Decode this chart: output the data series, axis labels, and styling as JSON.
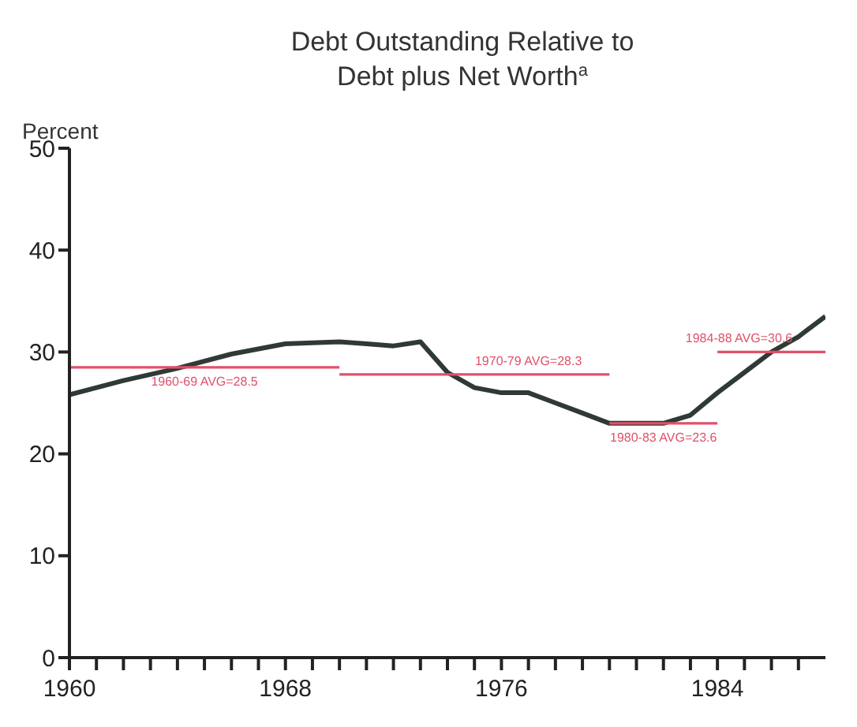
{
  "chart_data": {
    "type": "line",
    "title": "Debt Outstanding Relative to Debt plus Net Worth$^{a}$",
    "ylabel": "Percent",
    "xlim": [
      1960,
      1988
    ],
    "ylim": [
      0,
      50
    ],
    "yticks": [
      0,
      10,
      20,
      30,
      40,
      50
    ],
    "xticks": [
      1960,
      {
        "value": 1961,
        "label": null
      },
      {
        "value": 1962,
        "label": null
      },
      {
        "value": 1963,
        "label": null
      },
      {
        "value": 1964,
        "label": null
      },
      {
        "value": 1965,
        "label": null
      },
      {
        "value": 1966,
        "label": null
      },
      {
        "value": 1967,
        "label": null
      },
      1968,
      {
        "value": 1969,
        "label": null
      },
      {
        "value": 1970,
        "label": null
      },
      {
        "value": 1971,
        "label": null
      },
      {
        "value": 1972,
        "label": null
      },
      {
        "value": 1973,
        "label": null
      },
      {
        "value": 1974,
        "label": null
      },
      {
        "value": 1975,
        "label": null
      },
      1976,
      {
        "value": 1977,
        "label": null
      },
      {
        "value": 1978,
        "label": null
      },
      {
        "value": 1979,
        "label": null
      },
      {
        "value": 1980,
        "label": null
      },
      {
        "value": 1981,
        "label": null
      },
      {
        "value": 1982,
        "label": null
      },
      {
        "value": 1983,
        "label": null
      },
      1984,
      {
        "value": 1985,
        "label": null
      },
      {
        "value": 1986,
        "label": null
      },
      {
        "value": 1987,
        "label": null
      }
    ],
    "grid": false,
    "legend": false,
    "marker": "none",
    "series": [
      {
        "color": "#2f3a35",
        "x": [
          1960,
          1962,
          1964,
          1966,
          1968,
          1970,
          1971,
          1972,
          1973,
          1974,
          1975,
          1976,
          1977,
          1978,
          1979,
          1980,
          1981,
          1982,
          1983,
          1984,
          1985,
          1986,
          1987,
          1988
        ],
        "values": [
          25.8,
          27.2,
          28.4,
          29.8,
          30.8,
          31,
          30.8,
          30.6,
          31,
          28,
          26.5,
          26,
          26,
          25,
          24,
          23,
          23,
          23,
          23.8,
          26,
          28,
          30,
          31.5,
          33.5
        ]
      },
      {
        "color": "#e0506a",
        "x": [
          1960,
          1970
        ],
        "values": [
          28.5,
          28.5
        ]
      },
      {
        "color": "#e0506a",
        "x": [
          1970,
          1980
        ],
        "values": [
          27.8,
          27.8
        ]
      },
      {
        "color": "#e0506a",
        "x": [
          1980,
          1984
        ],
        "values": [
          23,
          23
        ]
      },
      {
        "color": "#e0506a",
        "x": [
          1984,
          1988
        ],
        "values": [
          30,
          30
        ]
      }
    ],
    "annotations": [
      {
        "text": "1960-69 AVG=28.5",
        "x": 1965,
        "y": 28.5
      },
      {
        "text": "1970-79 AVG=28.3",
        "x": 1977,
        "y": 27.8
      },
      {
        "text": "1980-83 AVG=23.6",
        "x": 1982,
        "y": 23
      },
      {
        "text": "1984-88 AVG=30.6",
        "x": 1984.8,
        "y": 30
      }
    ]
  }
}
